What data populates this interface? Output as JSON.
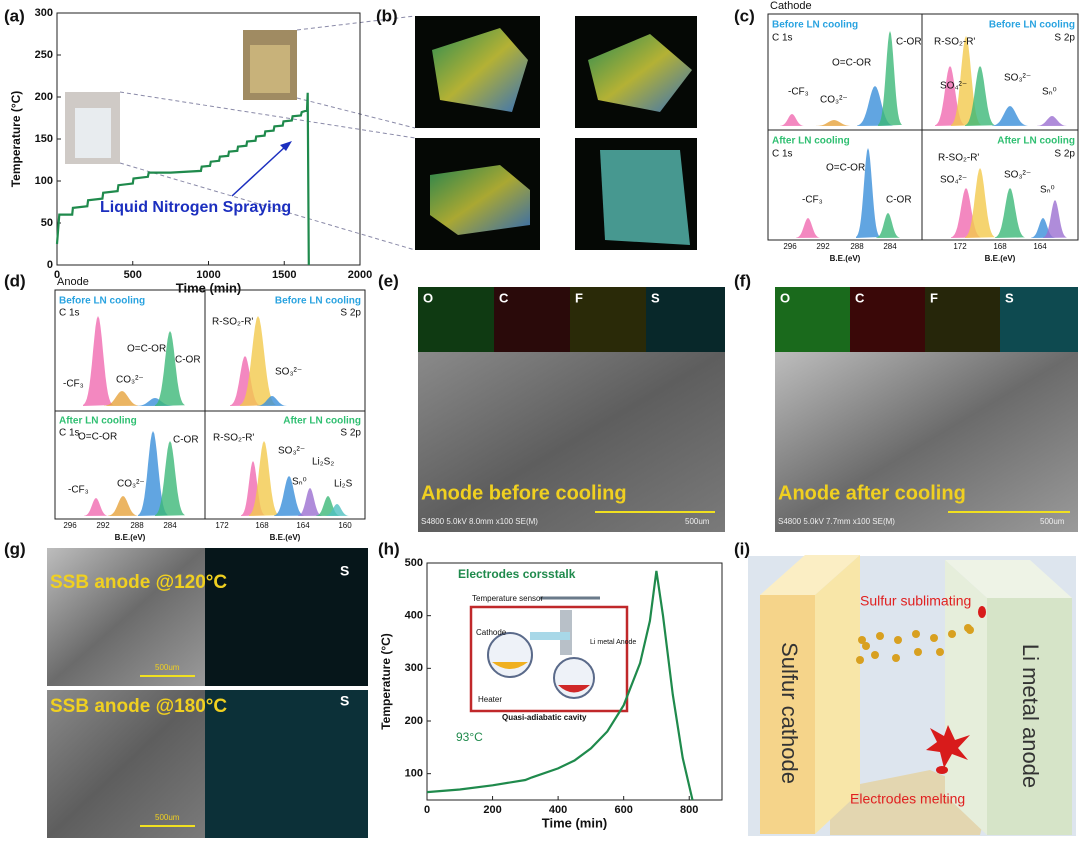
{
  "panel_labels": [
    "(a)",
    "(b)",
    "(c)",
    "(d)",
    "(e)",
    "(f)",
    "(g)",
    "(h)",
    "(i)"
  ],
  "chart_data": [
    {
      "type": "line",
      "x_label": "Time (min)",
      "y_label": "Temperature (°C)",
      "color": "#1f8a4c",
      "xlim": [
        0,
        2000
      ],
      "xticks": [
        0,
        500,
        1000,
        1500,
        2000
      ],
      "ylim": [
        0,
        300
      ],
      "yticks": [
        0,
        50,
        100,
        150,
        200,
        250,
        300
      ],
      "x": [
        0,
        15,
        100,
        105,
        200,
        205,
        300,
        305,
        400,
        405,
        500,
        505,
        600,
        605,
        750,
        950,
        955,
        1010,
        1015,
        1070,
        1075,
        1130,
        1135,
        1190,
        1195,
        1250,
        1255,
        1310,
        1315,
        1370,
        1375,
        1430,
        1435,
        1490,
        1495,
        1550,
        1555,
        1610,
        1615,
        1650,
        1655,
        1662
      ],
      "values": [
        25,
        60,
        60,
        68,
        70,
        77,
        79,
        86,
        88,
        95,
        97,
        103,
        105,
        110,
        110,
        112,
        117,
        118,
        123,
        124,
        129,
        130,
        135,
        136,
        141,
        142,
        147,
        148,
        153,
        154,
        159,
        160,
        165,
        166,
        171,
        172,
        177,
        178,
        182,
        184,
        205,
        0
      ],
      "annotations": [
        "Liquid Nitrogen Spraying"
      ]
    },
    {
      "type": "line",
      "x_label": "Time (min)",
      "y_label": "Temperature (°C)",
      "color": "#1f8a4c",
      "xlim": [
        0,
        900
      ],
      "xticks": [
        0,
        200,
        400,
        600,
        800
      ],
      "ylim": [
        50,
        500
      ],
      "yticks": [
        100,
        200,
        300,
        400,
        500
      ],
      "x": [
        0,
        100,
        200,
        300,
        320,
        400,
        450,
        500,
        550,
        600,
        650,
        680,
        700,
        720,
        750,
        780,
        810
      ],
      "values": [
        65,
        70,
        78,
        88,
        93,
        110,
        125,
        148,
        180,
        230,
        310,
        390,
        485,
        400,
        250,
        130,
        50
      ],
      "annotations": [
        "Electrodes corsstalk",
        "93°C",
        "Temperature sensor",
        "Cathode",
        "Li metal Anode",
        "Heater",
        "Quasi-adiabatic cavity"
      ]
    }
  ],
  "panel_c": {
    "title": "Cathode",
    "before": "Before LN cooling",
    "after": "After LN cooling",
    "c1s": "C 1s",
    "s2p": "S 2p",
    "xlabel": "B.E.(eV)",
    "c_ticks": [
      296,
      292,
      288,
      284
    ],
    "s_ticks": [
      172,
      168,
      164
    ],
    "before_c_peaks": [
      "-CF₃",
      "CO₃²⁻",
      "O=C-OR",
      "C-OR"
    ],
    "before_s_peaks": [
      "R-SO₂-R'",
      "SO₄²⁻",
      "SO₃²⁻",
      "Sₙ⁰"
    ],
    "after_c_peaks": [
      "-CF₃",
      "O=C-OR",
      "C-OR"
    ],
    "after_s_peaks": [
      "R-SO₂-R'",
      "SO₄²⁻",
      "SO₃²⁻",
      "Sₙ⁰"
    ]
  },
  "panel_d": {
    "title": "Anode",
    "before": "Before LN cooling",
    "after": "After LN cooling",
    "c1s": "C 1s",
    "s2p": "S 2p",
    "xlabel": "B.E.(eV)",
    "c_ticks": [
      296,
      292,
      288,
      284
    ],
    "s_ticks": [
      172,
      168,
      164,
      160
    ],
    "before_c_peaks": [
      "-CF₃",
      "CO₃²⁻",
      "O=C-OR",
      "C-OR"
    ],
    "before_s_peaks": [
      "R-SO₂-R'",
      "SO₃²⁻"
    ],
    "after_c_peaks": [
      "-CF₃",
      "CO₃²⁻",
      "O=C-OR",
      "C-OR"
    ],
    "after_s_peaks": [
      "R-SO₂-R'",
      "SO₃²⁻",
      "Sₙ⁰",
      "Li₂S₂",
      "Li₂S"
    ]
  },
  "panel_e": {
    "elements": [
      "O",
      "C",
      "F",
      "S"
    ],
    "caption": "Anode before cooling",
    "info": "S4800 5.0kV 8.0mm x100 SE(M)",
    "scale": "500um"
  },
  "panel_f": {
    "elements": [
      "O",
      "C",
      "F",
      "S"
    ],
    "caption": "Anode after cooling",
    "info": "S4800 5.0kV 7.7mm x100 SE(M)",
    "scale": "500um"
  },
  "panel_g": {
    "rows": [
      {
        "caption": "SSB anode @120°C",
        "element": "S",
        "scale": "500um"
      },
      {
        "caption": "SSB anode @180°C",
        "element": "S",
        "scale": "500um"
      }
    ]
  },
  "panel_i": {
    "labels": [
      "Sulfur sublimating",
      "Sulfur cathode",
      "Li metal anode",
      "Electrodes melting"
    ]
  }
}
